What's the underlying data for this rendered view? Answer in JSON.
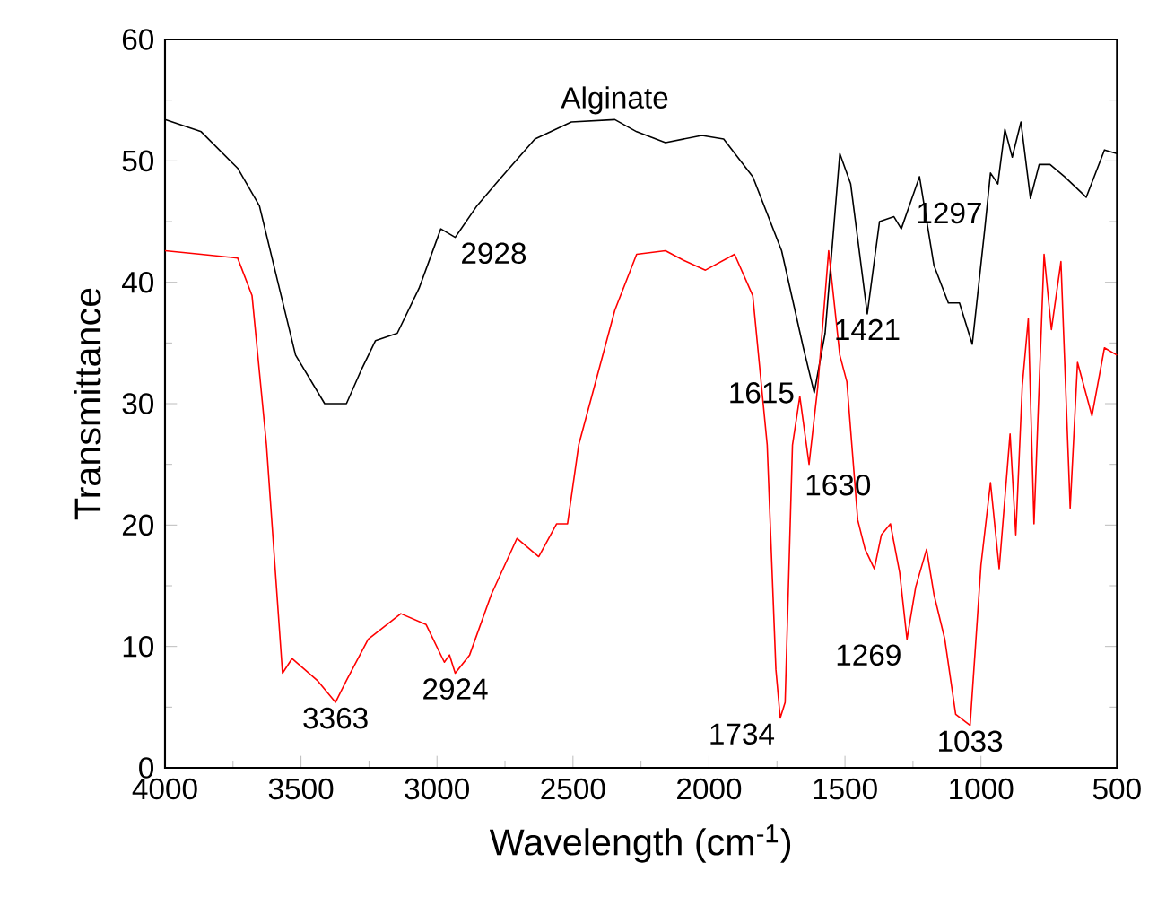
{
  "chart_data": {
    "type": "line",
    "xlabel": "Wavelength (cm$^{-1}$)",
    "ylabel": "Transmittance",
    "xlim": [
      4000,
      500
    ],
    "ylim": [
      0,
      60
    ],
    "xticks": [
      4000,
      3500,
      3000,
      2500,
      2000,
      1500,
      1000,
      500
    ],
    "yticks": [
      0,
      10,
      20,
      30,
      40,
      50,
      60
    ],
    "grid": false,
    "legend": false,
    "marker": "none",
    "line_style": "solid",
    "series": [
      {
        "name": "Alginate",
        "color": "#000000",
        "x": [
          4000,
          3867,
          3733,
          3653,
          3573,
          3520,
          3413,
          3333,
          3280,
          3226,
          3146,
          3066,
          2986,
          2933,
          2853,
          2773,
          2640,
          2506,
          2346,
          2266,
          2160,
          2026,
          1946,
          1839,
          1733,
          1653,
          1613,
          1573,
          1519,
          1479,
          1418,
          1373,
          1320,
          1293,
          1226,
          1173,
          1120,
          1079,
          1032,
          986,
          965,
          938,
          912,
          885,
          853,
          818,
          786,
          746,
          693,
          613,
          546,
          500
        ],
        "values": [
          53.4,
          52.4,
          49.4,
          46.3,
          38.9,
          34.0,
          30.0,
          30.0,
          32.7,
          35.2,
          35.8,
          39.5,
          44.4,
          43.7,
          46.3,
          48.4,
          51.8,
          53.2,
          53.4,
          52.4,
          51.5,
          52.1,
          51.8,
          48.7,
          42.6,
          34.6,
          30.9,
          35.8,
          50.6,
          48.1,
          37.4,
          45.0,
          45.4,
          44.4,
          48.7,
          41.4,
          38.3,
          38.3,
          34.9,
          44.4,
          49.0,
          48.1,
          52.6,
          50.3,
          53.2,
          46.9,
          49.7,
          49.7,
          48.7,
          47.0,
          50.9,
          50.6
        ]
      },
      {
        "color": "#ff0000",
        "x": [
          4000,
          3867,
          3733,
          3680,
          3627,
          3568,
          3533,
          3440,
          3373,
          3333,
          3253,
          3133,
          3040,
          2973,
          2954,
          2933,
          2880,
          2800,
          2706,
          2626,
          2560,
          2520,
          2479,
          2346,
          2266,
          2160,
          2093,
          2013,
          1906,
          1839,
          1786,
          1754,
          1738,
          1720,
          1693,
          1666,
          1632,
          1600,
          1560,
          1519,
          1493,
          1453,
          1426,
          1392,
          1366,
          1333,
          1299,
          1272,
          1240,
          1200,
          1173,
          1133,
          1093,
          1040,
          1000,
          965,
          933,
          893,
          872,
          848,
          826,
          805,
          768,
          741,
          706,
          672,
          645,
          592,
          546,
          500
        ],
        "values": [
          42.6,
          42.3,
          42.0,
          38.9,
          26.6,
          7.8,
          9.0,
          7.2,
          5.4,
          7.2,
          10.6,
          12.7,
          11.8,
          8.7,
          9.3,
          7.8,
          9.3,
          14.3,
          18.9,
          17.4,
          20.1,
          20.1,
          26.6,
          37.7,
          42.3,
          42.6,
          41.8,
          41.0,
          42.3,
          38.9,
          26.6,
          8.1,
          4.1,
          5.4,
          26.6,
          30.6,
          25.0,
          31.4,
          42.6,
          34.0,
          31.8,
          20.4,
          18.0,
          16.4,
          19.2,
          20.1,
          16.1,
          10.6,
          14.9,
          18.0,
          14.3,
          10.6,
          4.4,
          3.5,
          16.7,
          23.5,
          16.4,
          27.5,
          19.2,
          31.5,
          37.0,
          20.1,
          42.3,
          36.1,
          41.7,
          21.4,
          33.4,
          29.0,
          34.6,
          34.0
        ]
      }
    ],
    "annotations": [
      {
        "text": "2928",
        "x": 2933,
        "y": 43.7
      },
      {
        "text": "3363",
        "x": 3373,
        "y": 5.4
      },
      {
        "text": "2924",
        "x": 2933,
        "y": 7.8
      },
      {
        "text": "1734",
        "x": 1738,
        "y": 4.1
      },
      {
        "text": "1615",
        "x": 1613,
        "y": 30.9
      },
      {
        "text": "1630",
        "x": 1632,
        "y": 25.0
      },
      {
        "text": "1421",
        "x": 1418,
        "y": 37.4
      },
      {
        "text": "1297",
        "x": 1293,
        "y": 44.4
      },
      {
        "text": "1269",
        "x": 1272,
        "y": 10.6
      },
      {
        "text": "1033",
        "x": 1040,
        "y": 3.5
      }
    ]
  }
}
